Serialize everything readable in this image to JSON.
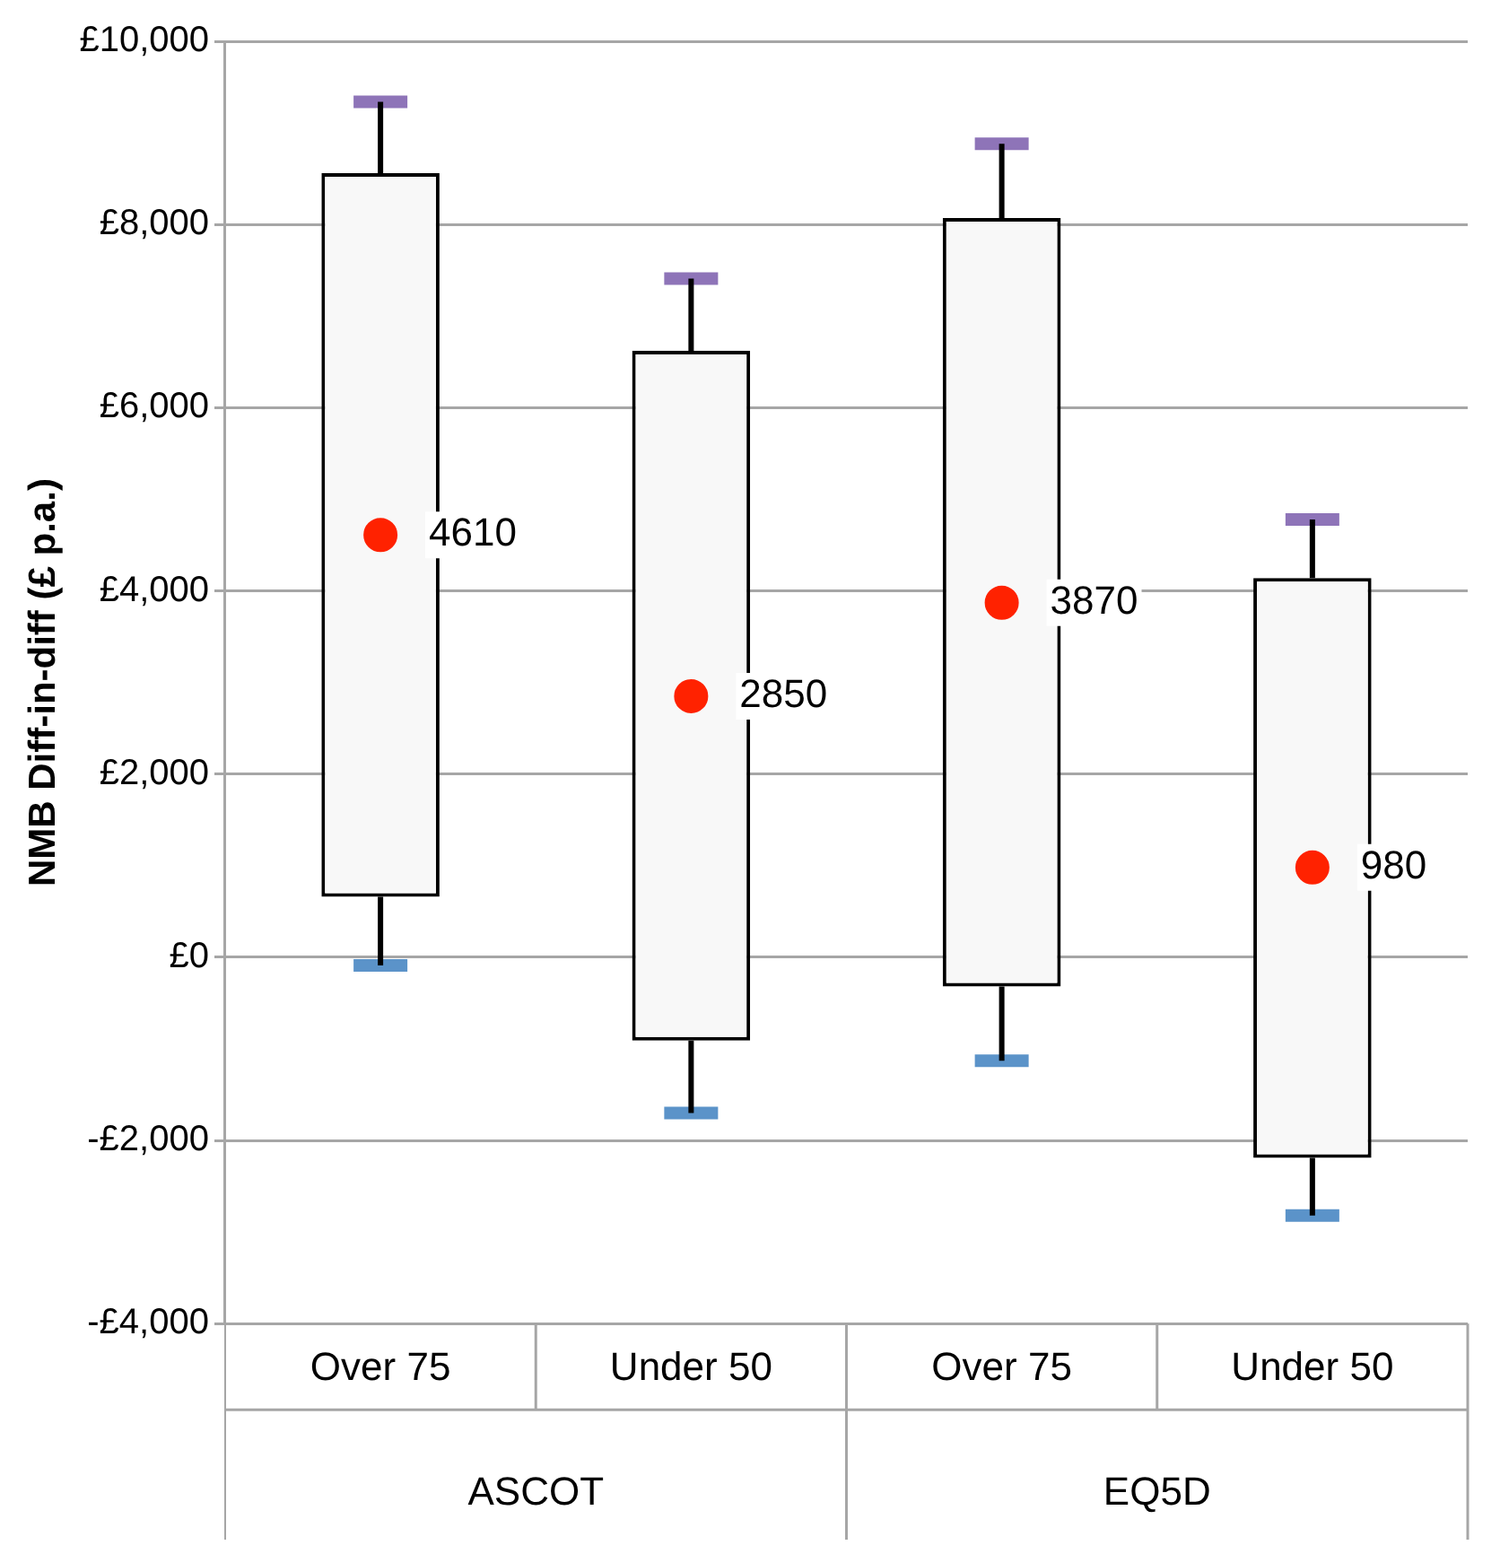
{
  "chart_data": {
    "type": "bar",
    "ylabel": "NMB Diff-in-diff (£ p.a.)",
    "categories": [
      "Over 75",
      "Under 50",
      "Over 75",
      "Under 50"
    ],
    "annotations": [
      "ASCOT",
      "EQ5D"
    ],
    "series": [
      {
        "color": "#f8f8f8",
        "base": [
          660,
          -910,
          -320,
          -2190
        ],
        "values": [
          7900,
          7530,
          8390,
          6330
        ],
        "errors": [
          [
            -90,
            9340
          ],
          [
            -1700,
            7410
          ],
          [
            -1130,
            8880
          ],
          [
            -2820,
            4780
          ]
        ]
      },
      {
        "type": "scatter",
        "color": "#ff2200",
        "values": [
          4610,
          2850,
          3870,
          980
        ],
        "value_labels": [
          "4610",
          "2850",
          "3870",
          "980"
        ]
      }
    ],
    "ylim": [
      -4000,
      10000
    ],
    "yticks": [
      {
        "value": -4000,
        "label": "-£4,000"
      },
      {
        "value": -2000,
        "label": "-£2,000"
      },
      {
        "value": 0,
        "label": "£0"
      },
      {
        "value": 2000,
        "label": "£2,000"
      },
      {
        "value": 4000,
        "label": "£4,000"
      },
      {
        "value": 6000,
        "label": "£6,000"
      },
      {
        "value": 8000,
        "label": "£8,000"
      },
      {
        "value": 10000,
        "label": "£10,000"
      }
    ],
    "grid": "y",
    "legend": false,
    "marker": "circle"
  }
}
